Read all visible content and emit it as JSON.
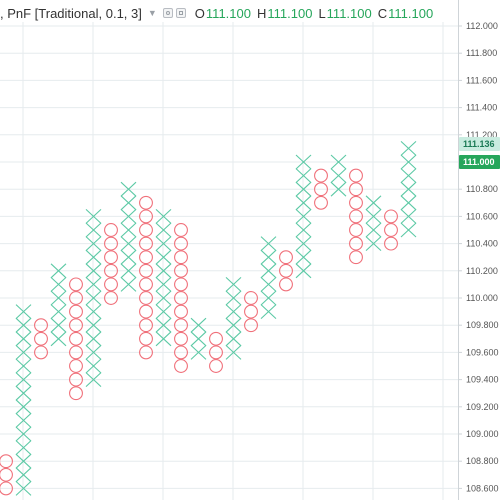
{
  "legend": {
    "title": ", PnF [Traditional, 0.1, 3]",
    "open_key": "O",
    "open_value": "111.100",
    "high_key": "H",
    "high_value": "111.100",
    "low_key": "L",
    "low_value": "111.100",
    "close_key": "C",
    "close_value": "111.100",
    "value_color": "#26a65b"
  },
  "price_tags": [
    {
      "label": "111.136",
      "style": "light"
    },
    {
      "label": "111.000",
      "style": "solid"
    }
  ],
  "chart_data": {
    "type": "point-and-figure",
    "box_size": 0.1,
    "reversal": 3,
    "ylim": [
      108.5,
      112.1
    ],
    "y_ticks": [
      "108.600",
      "108.800",
      "109.000",
      "109.200",
      "109.400",
      "109.600",
      "109.800",
      "110.000",
      "110.200",
      "110.400",
      "110.600",
      "110.800",
      "111.000",
      "111.200",
      "111.400",
      "111.600",
      "111.800",
      "112.000"
    ],
    "colors": {
      "x": "#5cc9a5",
      "o": "#f0707a",
      "grid": "#e6ebee",
      "axis": "#cfd4d8"
    },
    "columns": [
      {
        "type": "O",
        "high": 108.8,
        "low": 108.6
      },
      {
        "type": "X",
        "high": 109.9,
        "low": 108.6
      },
      {
        "type": "O",
        "high": 109.8,
        "low": 109.6
      },
      {
        "type": "X",
        "high": 110.2,
        "low": 109.7
      },
      {
        "type": "O",
        "high": 110.1,
        "low": 109.3
      },
      {
        "type": "X",
        "high": 110.6,
        "low": 109.4
      },
      {
        "type": "O",
        "high": 110.5,
        "low": 110.0
      },
      {
        "type": "X",
        "high": 110.8,
        "low": 110.1
      },
      {
        "type": "O",
        "high": 110.7,
        "low": 109.6
      },
      {
        "type": "X",
        "high": 110.6,
        "low": 109.7
      },
      {
        "type": "O",
        "high": 110.5,
        "low": 109.5
      },
      {
        "type": "X",
        "high": 109.8,
        "low": 109.6
      },
      {
        "type": "O",
        "high": 109.7,
        "low": 109.5
      },
      {
        "type": "X",
        "high": 110.1,
        "low": 109.6
      },
      {
        "type": "O",
        "high": 110.0,
        "low": 109.8
      },
      {
        "type": "X",
        "high": 110.4,
        "low": 109.9
      },
      {
        "type": "O",
        "high": 110.3,
        "low": 110.1
      },
      {
        "type": "X",
        "high": 111.0,
        "low": 110.2
      },
      {
        "type": "O",
        "high": 110.9,
        "low": 110.7
      },
      {
        "type": "X",
        "high": 111.0,
        "low": 110.8
      },
      {
        "type": "O",
        "high": 110.9,
        "low": 110.3
      },
      {
        "type": "X",
        "high": 110.7,
        "low": 110.4
      },
      {
        "type": "O",
        "high": 110.6,
        "low": 110.4
      },
      {
        "type": "X",
        "high": 111.1,
        "low": 110.5
      }
    ]
  }
}
